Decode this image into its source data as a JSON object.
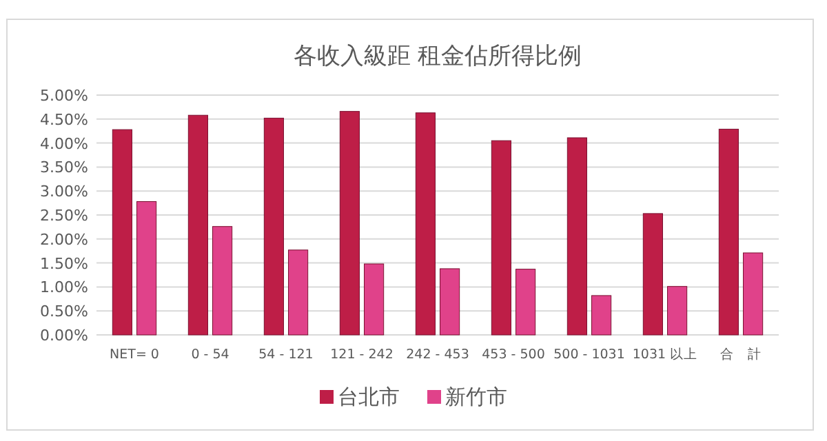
{
  "chart_data": {
    "type": "bar",
    "title": "各收入級距  租金佔所得比例",
    "categories": [
      "NET= 0",
      "0 - 54",
      "54 - 121",
      "121 - 242",
      "242 - 453",
      "453 - 500",
      "500 - 1031",
      "1031 以上",
      "合　計"
    ],
    "series": [
      {
        "name": "台北市",
        "color": "#be1e47",
        "values": [
          4.28,
          4.58,
          4.52,
          4.66,
          4.63,
          4.05,
          4.11,
          2.53,
          4.29
        ]
      },
      {
        "name": "新竹市",
        "color": "#e0428a",
        "values": [
          2.78,
          2.26,
          1.77,
          1.48,
          1.38,
          1.37,
          0.82,
          1.01,
          1.71
        ]
      }
    ],
    "ylim": [
      0,
      5
    ],
    "yticks": [
      {
        "value": 0,
        "label": "0.00%"
      },
      {
        "value": 0.5,
        "label": "0.50%"
      },
      {
        "value": 1,
        "label": "1.00%"
      },
      {
        "value": 1.5,
        "label": "1.50%"
      },
      {
        "value": 2,
        "label": "2.00%"
      },
      {
        "value": 2.5,
        "label": "2.50%"
      },
      {
        "value": 3,
        "label": "3.00%"
      },
      {
        "value": 3.5,
        "label": "3.50%"
      },
      {
        "value": 4,
        "label": "4.00%"
      },
      {
        "value": 4.5,
        "label": "4.50%"
      },
      {
        "value": 5,
        "label": "5.00%"
      }
    ],
    "grid": "y",
    "legend": "bottom"
  }
}
